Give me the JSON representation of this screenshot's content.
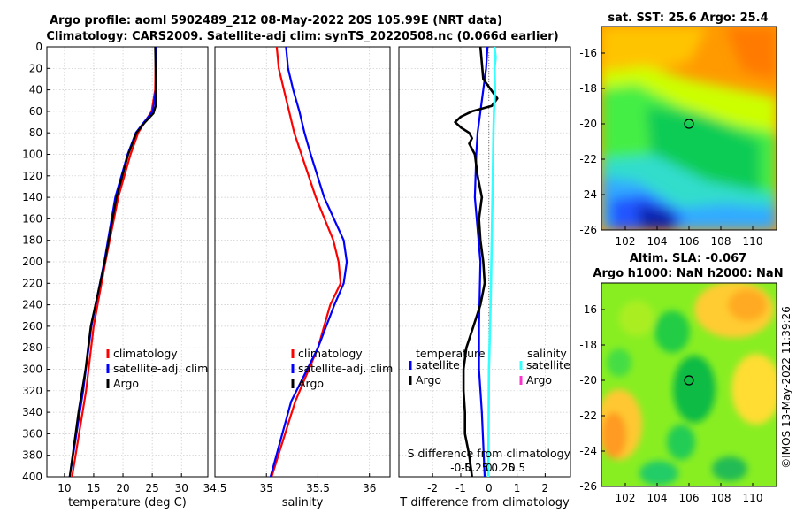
{
  "header": {
    "title_line1": "Argo profile: aoml 5902489_212 08-May-2022 20S 105.99E (NRT data)",
    "title_line2": "Climatology: CARS2009. Satellite-adj clim: synTS_20220508.nc (0.066d earlier)"
  },
  "side_label": "©IMOS 13-May-2022 11:39:26",
  "colors": {
    "climatology": "#ff0000",
    "satellite_adj": "#0000ff",
    "argo": "#000000",
    "salinity_satellite": "#33ffff",
    "salinity_argo": "#ff33cc"
  },
  "chart_data": [
    {
      "id": "temperature",
      "type": "line",
      "xlabel": "temperature (deg C)",
      "ylabel": "",
      "xlim": [
        7,
        34.5
      ],
      "ylim": [
        400,
        0
      ],
      "xticks": [
        10,
        15,
        20,
        25,
        30
      ],
      "yticks": [
        0,
        20,
        40,
        60,
        80,
        100,
        120,
        140,
        160,
        180,
        200,
        220,
        240,
        260,
        280,
        300,
        320,
        340,
        360,
        380,
        400
      ],
      "legend": [
        "climatology",
        "satellite-adj. clim",
        "Argo"
      ],
      "series": [
        {
          "name": "climatology",
          "depth": [
            0,
            40,
            60,
            70,
            80,
            100,
            140,
            200,
            260,
            320,
            400
          ],
          "values": [
            25.6,
            25.5,
            24.9,
            23.7,
            22.6,
            21.3,
            19.2,
            17.0,
            15.0,
            13.7,
            11.3
          ]
        },
        {
          "name": "satellite-adj. clim",
          "depth": [
            0,
            40,
            60,
            70,
            80,
            100,
            140,
            200,
            260,
            320,
            400
          ],
          "values": [
            25.7,
            25.6,
            25.1,
            23.6,
            22.2,
            20.8,
            18.7,
            16.8,
            14.6,
            13.2,
            10.9
          ]
        },
        {
          "name": "Argo",
          "depth": [
            0,
            30,
            55,
            62,
            70,
            80,
            100,
            140,
            200,
            260,
            300,
            340,
            400
          ],
          "values": [
            25.5,
            25.6,
            25.6,
            25.2,
            23.8,
            22.3,
            20.9,
            18.9,
            16.9,
            14.5,
            13.6,
            12.4,
            10.9
          ]
        }
      ]
    },
    {
      "id": "salinity",
      "type": "line",
      "xlabel": "salinity",
      "xlim": [
        34.5,
        36.2
      ],
      "ylim": [
        400,
        0
      ],
      "xticks": [
        34.5,
        35,
        35.5,
        36
      ],
      "xtick_labels": [
        "34.5",
        "35",
        "35.5",
        "36"
      ],
      "legend": [
        "climatology",
        "satellite-adj. clim",
        "Argo"
      ],
      "series": [
        {
          "name": "climatology",
          "depth": [
            0,
            20,
            40,
            60,
            80,
            100,
            140,
            180,
            200,
            220,
            240,
            280,
            330,
            400
          ],
          "values": [
            35.1,
            35.12,
            35.17,
            35.22,
            35.27,
            35.34,
            35.48,
            35.65,
            35.7,
            35.72,
            35.62,
            35.5,
            35.28,
            35.05
          ]
        },
        {
          "name": "satellite-adj. clim",
          "depth": [
            0,
            20,
            40,
            60,
            80,
            100,
            140,
            180,
            200,
            220,
            240,
            280,
            330,
            400
          ],
          "values": [
            35.19,
            35.21,
            35.26,
            35.32,
            35.37,
            35.43,
            35.56,
            35.75,
            35.78,
            35.75,
            35.66,
            35.5,
            35.24,
            35.04
          ]
        }
      ]
    },
    {
      "id": "difference",
      "type": "line",
      "xlabel": "T difference from climatology",
      "top_label": "S difference from climatology",
      "xlim": [
        -3.2,
        2.9
      ],
      "ylim": [
        400,
        0
      ],
      "xticks": [
        -2,
        -1,
        0,
        1,
        2
      ],
      "top_ticks": [
        -0.5,
        -0.25,
        0,
        0.25,
        0.5
      ],
      "top_tick_labels": [
        "-0.5",
        "-0.25",
        "0",
        "0.25",
        "0.5"
      ],
      "legend_temperature_title": "temperature",
      "legend_salinity_title": "salinity",
      "legend_temperature": [
        "satellite",
        "Argo"
      ],
      "legend_salinity": [
        "satellite",
        "Argo"
      ],
      "series": [
        {
          "name": "temperature satellite",
          "depth": [
            0,
            20,
            40,
            60,
            80,
            100,
            140,
            200,
            260,
            300,
            340,
            400
          ],
          "values": [
            -0.05,
            -0.1,
            -0.2,
            -0.3,
            -0.4,
            -0.45,
            -0.5,
            -0.3,
            -0.35,
            -0.35,
            -0.25,
            -0.15
          ]
        },
        {
          "name": "temperature Argo",
          "depth": [
            0,
            30,
            48,
            55,
            60,
            65,
            70,
            75,
            80,
            85,
            90,
            100,
            120,
            140,
            160,
            180,
            200,
            220,
            240,
            260,
            280,
            300,
            320,
            340,
            360,
            380,
            400
          ],
          "values": [
            -0.3,
            -0.2,
            0.3,
            0.1,
            -0.6,
            -1.0,
            -1.2,
            -1.0,
            -0.7,
            -0.6,
            -0.7,
            -0.5,
            -0.4,
            -0.25,
            -0.35,
            -0.3,
            -0.2,
            -0.15,
            -0.3,
            -0.55,
            -0.8,
            -0.9,
            -0.9,
            -0.85,
            -0.85,
            -0.7,
            -0.6
          ]
        },
        {
          "name": "salinity satellite",
          "depth": [
            0,
            10,
            20,
            40,
            60,
            80,
            120,
            180,
            240,
            300,
            400
          ],
          "values": [
            0.1,
            0.12,
            0.1,
            0.11,
            0.09,
            0.08,
            0.07,
            0.05,
            0.03,
            0.0,
            -0.01
          ]
        }
      ]
    },
    {
      "id": "sst_map",
      "type": "heatmap",
      "title": "sat. SST: 25.6 Argo: 25.4",
      "xlim": [
        100.5,
        111.5
      ],
      "ylim": [
        -26,
        -14.5
      ],
      "xticks": [
        102,
        104,
        106,
        108,
        110
      ],
      "yticks": [
        -16,
        -18,
        -20,
        -22,
        -24,
        -26
      ],
      "marker": {
        "lon": 106,
        "lat": -20
      }
    },
    {
      "id": "sla_map",
      "type": "heatmap",
      "title": "Altim. SLA: -0.067",
      "subtitle": "Argo h1000: NaN h2000: NaN",
      "xlim": [
        100.5,
        111.5
      ],
      "ylim": [
        -26,
        -14.5
      ],
      "xticks": [
        102,
        104,
        106,
        108,
        110
      ],
      "yticks": [
        -16,
        -18,
        -20,
        -22,
        -24,
        -26
      ],
      "marker": {
        "lon": 106,
        "lat": -20
      }
    }
  ]
}
